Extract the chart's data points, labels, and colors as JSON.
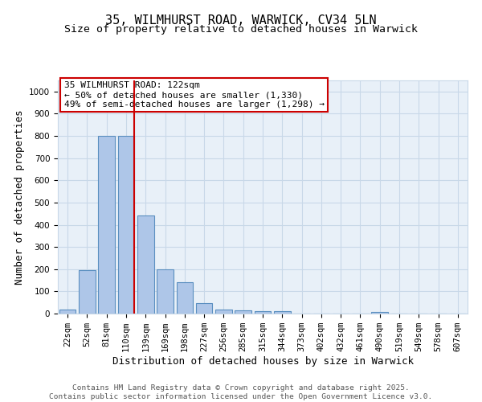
{
  "title1": "35, WILMHURST ROAD, WARWICK, CV34 5LN",
  "title2": "Size of property relative to detached houses in Warwick",
  "xlabel": "Distribution of detached houses by size in Warwick",
  "ylabel": "Number of detached properties",
  "categories": [
    "22sqm",
    "52sqm",
    "81sqm",
    "110sqm",
    "139sqm",
    "169sqm",
    "198sqm",
    "227sqm",
    "256sqm",
    "285sqm",
    "315sqm",
    "344sqm",
    "373sqm",
    "402sqm",
    "432sqm",
    "461sqm",
    "490sqm",
    "519sqm",
    "549sqm",
    "578sqm",
    "607sqm"
  ],
  "values": [
    18,
    195,
    800,
    800,
    440,
    198,
    143,
    48,
    18,
    13,
    12,
    12,
    0,
    0,
    0,
    0,
    8,
    0,
    0,
    0,
    0
  ],
  "bar_color": "#aec6e8",
  "bar_edgecolor": "#5a8fc0",
  "bar_linewidth": 0.8,
  "vline_color": "#cc0000",
  "annotation_text": "35 WILMHURST ROAD: 122sqm\n← 50% of detached houses are smaller (1,330)\n49% of semi-detached houses are larger (1,298) →",
  "annotation_box_edgecolor": "#cc0000",
  "ylim": [
    0,
    1050
  ],
  "yticks": [
    0,
    100,
    200,
    300,
    400,
    500,
    600,
    700,
    800,
    900,
    1000
  ],
  "grid_color": "#c8d8e8",
  "background_color": "#e8f0f8",
  "footer_text": "Contains HM Land Registry data © Crown copyright and database right 2025.\nContains public sector information licensed under the Open Government Licence v3.0.",
  "title_fontsize": 11,
  "subtitle_fontsize": 9.5,
  "axis_label_fontsize": 9,
  "tick_fontsize": 7.5,
  "annotation_fontsize": 8,
  "footer_fontsize": 6.8
}
